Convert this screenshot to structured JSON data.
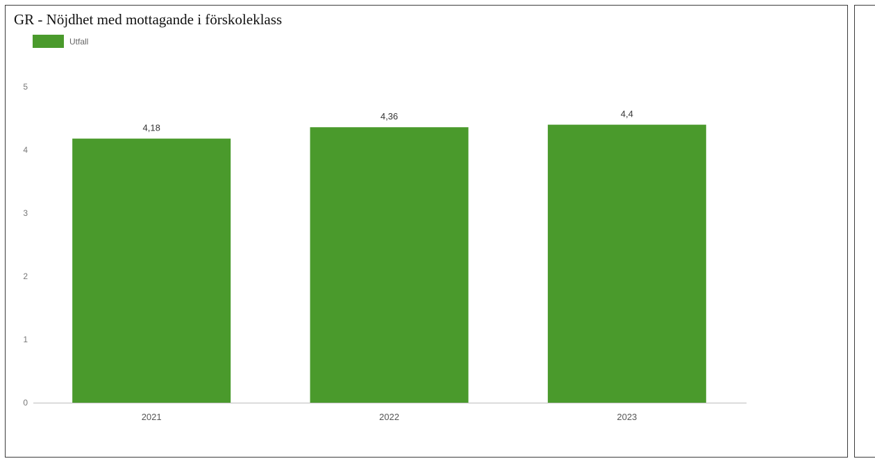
{
  "colors": {
    "bar": "#4a9a2c",
    "axis": "#bdbdbd"
  },
  "chart_data": {
    "type": "bar",
    "title": "GR - Nöjdhet med mottagande i förskoleklass",
    "categories": [
      "2021",
      "2022",
      "2023"
    ],
    "series": [
      {
        "name": "Utfall",
        "values": [
          4.18,
          4.36,
          4.4
        ],
        "data_labels": [
          "4,18",
          "4,36",
          "4,4"
        ]
      }
    ],
    "yticks": [
      0,
      1,
      2,
      3,
      4,
      5
    ],
    "ylim": [
      0,
      5
    ],
    "xlabel": "",
    "ylabel": "",
    "legend": "top-left",
    "grid": false
  }
}
